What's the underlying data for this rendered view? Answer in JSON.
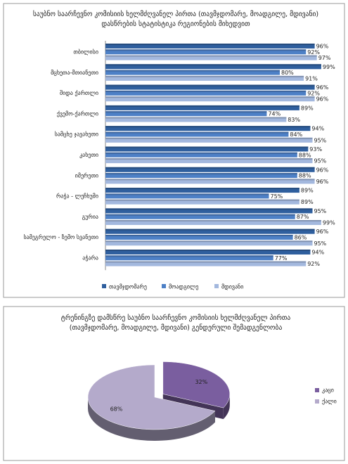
{
  "chart_data": [
    {
      "type": "bar",
      "orientation": "horizontal",
      "title": "საუბნო საარჩევნო კომისიის ხელმძღვანელ პირთა (თავმჯდომარე, მოადგილე, მდივანი) დასწრების სტატისტიკა რეგიონების მიხედვით",
      "categories": [
        "თბილისი",
        "მცხეთა-მთიანეთი",
        "შიდა ქართლი",
        "ქვემო-ქართლი",
        "სამცხე ჯავახეთი",
        "კახეთი",
        "იმერეთი",
        "რაჭა - ლეჩხუმი",
        "გურია",
        "სამეგრელო - ზემო სვანეთი",
        "აჭარა"
      ],
      "xlim": [
        0,
        100
      ],
      "legend": "bottom",
      "series": [
        {
          "name": "თავმჯდომარე",
          "color": "#2f5f9e",
          "values": [
            96,
            99,
            96,
            89,
            94,
            93,
            96,
            89,
            95,
            96,
            94
          ],
          "value_labels": [
            "96%",
            "99%",
            "96%",
            "89%",
            "94%",
            "93%",
            "96%",
            "89%",
            "95%",
            "96%",
            "94%"
          ]
        },
        {
          "name": "მოადგილე",
          "color": "#4d80c6",
          "values": [
            92,
            80,
            92,
            74,
            84,
            88,
            88,
            75,
            87,
            86,
            77
          ],
          "value_labels": [
            "92%",
            "80%",
            "92%",
            "74%",
            "84%",
            "88%",
            "88%",
            "75%",
            "87%",
            "86%",
            "77%"
          ]
        },
        {
          "name": "მდივანი",
          "color": "#a3b8de",
          "values": [
            97,
            91,
            96,
            83,
            95,
            95,
            96,
            89,
            99,
            95,
            92
          ],
          "value_labels": [
            "97%",
            "91%",
            "96%",
            "83%",
            "95%",
            "95%",
            "96%",
            "89%",
            "99%",
            "95%",
            "92%"
          ]
        }
      ]
    },
    {
      "type": "pie",
      "title": "ტრენინგზე დამსწრე საუბნო საარჩევნო კომისიის ხელმძღვანელ პირთა (თავმჯდომარე, მოადგილე, მდივანი) გენდერული შემადგენლობა",
      "categories": [
        "კაცი",
        "ქალი"
      ],
      "values": [
        32,
        68
      ],
      "value_labels": [
        "32%",
        "68%"
      ],
      "colors": [
        "#7a5e9f",
        "#b4aacb"
      ],
      "legend": "right"
    }
  ]
}
